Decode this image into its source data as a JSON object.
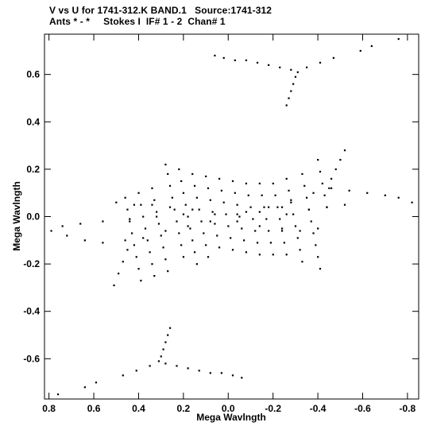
{
  "chart_data": {
    "type": "scatter",
    "title": "V vs U for 1741-312.K BAND.1   Source:1741-312",
    "subtitle": "Ants * - *     Stokes I  IF# 1 - 2  Chan# 1",
    "xlabel": "Mega Wavlngth",
    "ylabel": "Mega Wavlngth",
    "xlim": [
      0.82,
      -0.85
    ],
    "ylim": [
      -0.77,
      0.77
    ],
    "xticks": [
      {
        "value": 0.8,
        "label": "0.8"
      },
      {
        "value": 0.6,
        "label": "0.6"
      },
      {
        "value": 0.4,
        "label": "0.4"
      },
      {
        "value": 0.2,
        "label": "0.2"
      },
      {
        "value": 0.0,
        "label": "0.0"
      },
      {
        "value": -0.2,
        "label": "-0.2"
      },
      {
        "value": -0.4,
        "label": "-0.4"
      },
      {
        "value": -0.6,
        "label": "-0.6"
      },
      {
        "value": -0.8,
        "label": "-0.8"
      }
    ],
    "yticks": [
      {
        "value": 0.6,
        "label": "0.6"
      },
      {
        "value": 0.4,
        "label": "0.4"
      },
      {
        "value": 0.2,
        "label": "0.2"
      },
      {
        "value": 0.0,
        "label": "0.0"
      },
      {
        "value": -0.2,
        "label": "-0.2"
      },
      {
        "value": -0.4,
        "label": "-0.4"
      },
      {
        "value": -0.6,
        "label": "-0.6"
      }
    ],
    "series": [
      {
        "color": "#000000",
        "points": [
          [
            0.06,
            0.68
          ],
          [
            0.02,
            0.67
          ],
          [
            -0.03,
            0.66
          ],
          [
            -0.08,
            0.66
          ],
          [
            -0.13,
            0.65
          ],
          [
            -0.18,
            0.64
          ],
          [
            -0.23,
            0.63
          ],
          [
            -0.28,
            0.62
          ],
          [
            -0.31,
            0.61
          ],
          [
            -0.35,
            0.63
          ],
          [
            -0.41,
            0.65
          ],
          [
            -0.47,
            0.67
          ],
          [
            -0.59,
            0.7
          ],
          [
            -0.64,
            0.72
          ],
          [
            -0.76,
            0.75
          ],
          [
            -0.3,
            0.59
          ],
          [
            -0.29,
            0.56
          ],
          [
            -0.28,
            0.53
          ],
          [
            -0.27,
            0.5
          ],
          [
            -0.26,
            0.47
          ],
          [
            -0.06,
            -0.68
          ],
          [
            -0.02,
            -0.67
          ],
          [
            0.03,
            -0.66
          ],
          [
            0.08,
            -0.66
          ],
          [
            0.13,
            -0.65
          ],
          [
            0.18,
            -0.64
          ],
          [
            0.23,
            -0.63
          ],
          [
            0.28,
            -0.62
          ],
          [
            0.31,
            -0.61
          ],
          [
            0.35,
            -0.63
          ],
          [
            0.41,
            -0.65
          ],
          [
            0.47,
            -0.67
          ],
          [
            0.59,
            -0.7
          ],
          [
            0.64,
            -0.72
          ],
          [
            0.76,
            -0.75
          ],
          [
            0.3,
            -0.59
          ],
          [
            0.29,
            -0.56
          ],
          [
            0.28,
            -0.53
          ],
          [
            0.27,
            -0.5
          ],
          [
            0.26,
            -0.47
          ],
          [
            0.79,
            -0.06
          ],
          [
            0.72,
            -0.08
          ],
          [
            0.64,
            -0.1
          ],
          [
            0.56,
            -0.11
          ],
          [
            0.46,
            -0.1
          ],
          [
            0.38,
            -0.09
          ],
          [
            0.28,
            -0.06
          ],
          [
            0.18,
            -0.04
          ],
          [
            0.08,
            -0.02
          ],
          [
            -0.04,
            0.01
          ],
          [
            -0.14,
            0.02
          ],
          [
            -0.24,
            0.04
          ],
          [
            0.74,
            -0.04
          ],
          [
            0.66,
            -0.03
          ],
          [
            0.56,
            -0.02
          ],
          [
            0.44,
            -0.01
          ],
          [
            0.32,
            0.0
          ],
          [
            0.2,
            0.01
          ],
          [
            0.5,
            0.06
          ],
          [
            0.42,
            0.05
          ],
          [
            0.34,
            0.05
          ],
          [
            0.26,
            0.04
          ],
          [
            0.16,
            0.03
          ],
          [
            0.06,
            0.01
          ],
          [
            -0.82,
            0.06
          ],
          [
            -0.76,
            0.08
          ],
          [
            -0.7,
            0.09
          ],
          [
            -0.62,
            0.1
          ],
          [
            -0.54,
            0.11
          ],
          [
            -0.46,
            0.12
          ],
          [
            -0.38,
            0.1
          ],
          [
            -0.28,
            0.07
          ],
          [
            -0.18,
            0.04
          ],
          [
            -0.08,
            0.02
          ],
          [
            -0.4,
            -0.05
          ],
          [
            -0.32,
            -0.06
          ],
          [
            -0.24,
            -0.05
          ],
          [
            -0.14,
            -0.04
          ],
          [
            -0.04,
            -0.02
          ],
          [
            -0.52,
            0.05
          ],
          [
            -0.44,
            0.04
          ],
          [
            -0.36,
            0.03
          ],
          [
            -0.26,
            0.01
          ],
          [
            0.28,
            0.22
          ],
          [
            0.27,
            0.18
          ],
          [
            0.26,
            0.13
          ],
          [
            0.25,
            0.08
          ],
          [
            0.24,
            0.03
          ],
          [
            0.23,
            -0.02
          ],
          [
            0.22,
            -0.07
          ],
          [
            0.21,
            -0.12
          ],
          [
            0.2,
            -0.17
          ],
          [
            0.22,
            0.2
          ],
          [
            0.21,
            0.15
          ],
          [
            0.2,
            0.1
          ],
          [
            0.19,
            0.05
          ],
          [
            0.18,
            0.0
          ],
          [
            0.17,
            -0.05
          ],
          [
            0.16,
            -0.1
          ],
          [
            0.15,
            -0.15
          ],
          [
            0.14,
            -0.2
          ],
          [
            0.16,
            0.18
          ],
          [
            0.15,
            0.13
          ],
          [
            0.14,
            0.08
          ],
          [
            0.13,
            0.03
          ],
          [
            0.12,
            -0.02
          ],
          [
            0.11,
            -0.07
          ],
          [
            0.1,
            -0.12
          ],
          [
            0.09,
            -0.17
          ],
          [
            0.1,
            0.17
          ],
          [
            0.09,
            0.12
          ],
          [
            0.08,
            0.07
          ],
          [
            0.07,
            0.02
          ],
          [
            0.06,
            -0.03
          ],
          [
            0.05,
            -0.08
          ],
          [
            0.04,
            -0.13
          ],
          [
            0.04,
            0.16
          ],
          [
            0.03,
            0.11
          ],
          [
            0.02,
            0.06
          ],
          [
            0.01,
            0.01
          ],
          [
            0.0,
            -0.04
          ],
          [
            -0.01,
            -0.09
          ],
          [
            -0.02,
            -0.14
          ],
          [
            -0.02,
            0.15
          ],
          [
            -0.03,
            0.1
          ],
          [
            -0.04,
            0.05
          ],
          [
            -0.05,
            0.0
          ],
          [
            -0.06,
            -0.05
          ],
          [
            -0.07,
            -0.1
          ],
          [
            -0.08,
            -0.15
          ],
          [
            -0.08,
            0.14
          ],
          [
            -0.09,
            0.09
          ],
          [
            -0.1,
            0.04
          ],
          [
            -0.11,
            -0.01
          ],
          [
            -0.12,
            -0.06
          ],
          [
            -0.13,
            -0.11
          ],
          [
            -0.14,
            -0.16
          ],
          [
            -0.14,
            0.14
          ],
          [
            -0.15,
            0.09
          ],
          [
            -0.16,
            0.04
          ],
          [
            -0.17,
            -0.01
          ],
          [
            -0.18,
            -0.06
          ],
          [
            -0.19,
            -0.11
          ],
          [
            -0.2,
            -0.16
          ],
          [
            -0.2,
            0.14
          ],
          [
            -0.21,
            0.09
          ],
          [
            -0.22,
            0.04
          ],
          [
            -0.23,
            -0.01
          ],
          [
            -0.24,
            -0.06
          ],
          [
            -0.25,
            -0.11
          ],
          [
            -0.26,
            -0.16
          ],
          [
            -0.26,
            0.16
          ],
          [
            -0.27,
            0.11
          ],
          [
            -0.28,
            0.06
          ],
          [
            -0.29,
            0.01
          ],
          [
            -0.3,
            -0.04
          ],
          [
            -0.31,
            -0.09
          ],
          [
            -0.32,
            -0.14
          ],
          [
            -0.33,
            -0.19
          ],
          [
            -0.33,
            0.18
          ],
          [
            -0.34,
            0.13
          ],
          [
            -0.35,
            0.08
          ],
          [
            -0.36,
            0.03
          ],
          [
            -0.37,
            -0.02
          ],
          [
            -0.38,
            -0.07
          ],
          [
            -0.39,
            -0.12
          ],
          [
            -0.4,
            -0.17
          ],
          [
            -0.41,
            -0.22
          ],
          [
            -0.4,
            0.24
          ],
          [
            -0.41,
            0.19
          ],
          [
            -0.42,
            0.14
          ],
          [
            -0.43,
            0.09
          ],
          [
            -0.44,
            0.04
          ],
          [
            -0.52,
            0.28
          ],
          [
            -0.5,
            0.24
          ],
          [
            -0.48,
            0.2
          ],
          [
            -0.46,
            0.16
          ],
          [
            -0.45,
            0.12
          ],
          [
            0.34,
            0.12
          ],
          [
            0.33,
            0.07
          ],
          [
            0.32,
            0.02
          ],
          [
            0.31,
            -0.03
          ],
          [
            0.3,
            -0.08
          ],
          [
            0.29,
            -0.13
          ],
          [
            0.28,
            -0.18
          ],
          [
            0.27,
            -0.23
          ],
          [
            0.4,
            0.1
          ],
          [
            0.39,
            0.05
          ],
          [
            0.38,
            0.0
          ],
          [
            0.37,
            -0.05
          ],
          [
            0.36,
            -0.1
          ],
          [
            0.35,
            -0.15
          ],
          [
            0.34,
            -0.2
          ],
          [
            0.33,
            -0.25
          ],
          [
            0.46,
            0.08
          ],
          [
            0.45,
            0.03
          ],
          [
            0.44,
            -0.02
          ],
          [
            0.43,
            -0.07
          ],
          [
            0.42,
            -0.12
          ],
          [
            0.41,
            -0.17
          ],
          [
            0.4,
            -0.22
          ],
          [
            0.39,
            -0.27
          ],
          [
            0.51,
            -0.29
          ],
          [
            0.49,
            -0.24
          ],
          [
            0.47,
            -0.19
          ],
          [
            0.45,
            -0.14
          ]
        ]
      }
    ]
  }
}
